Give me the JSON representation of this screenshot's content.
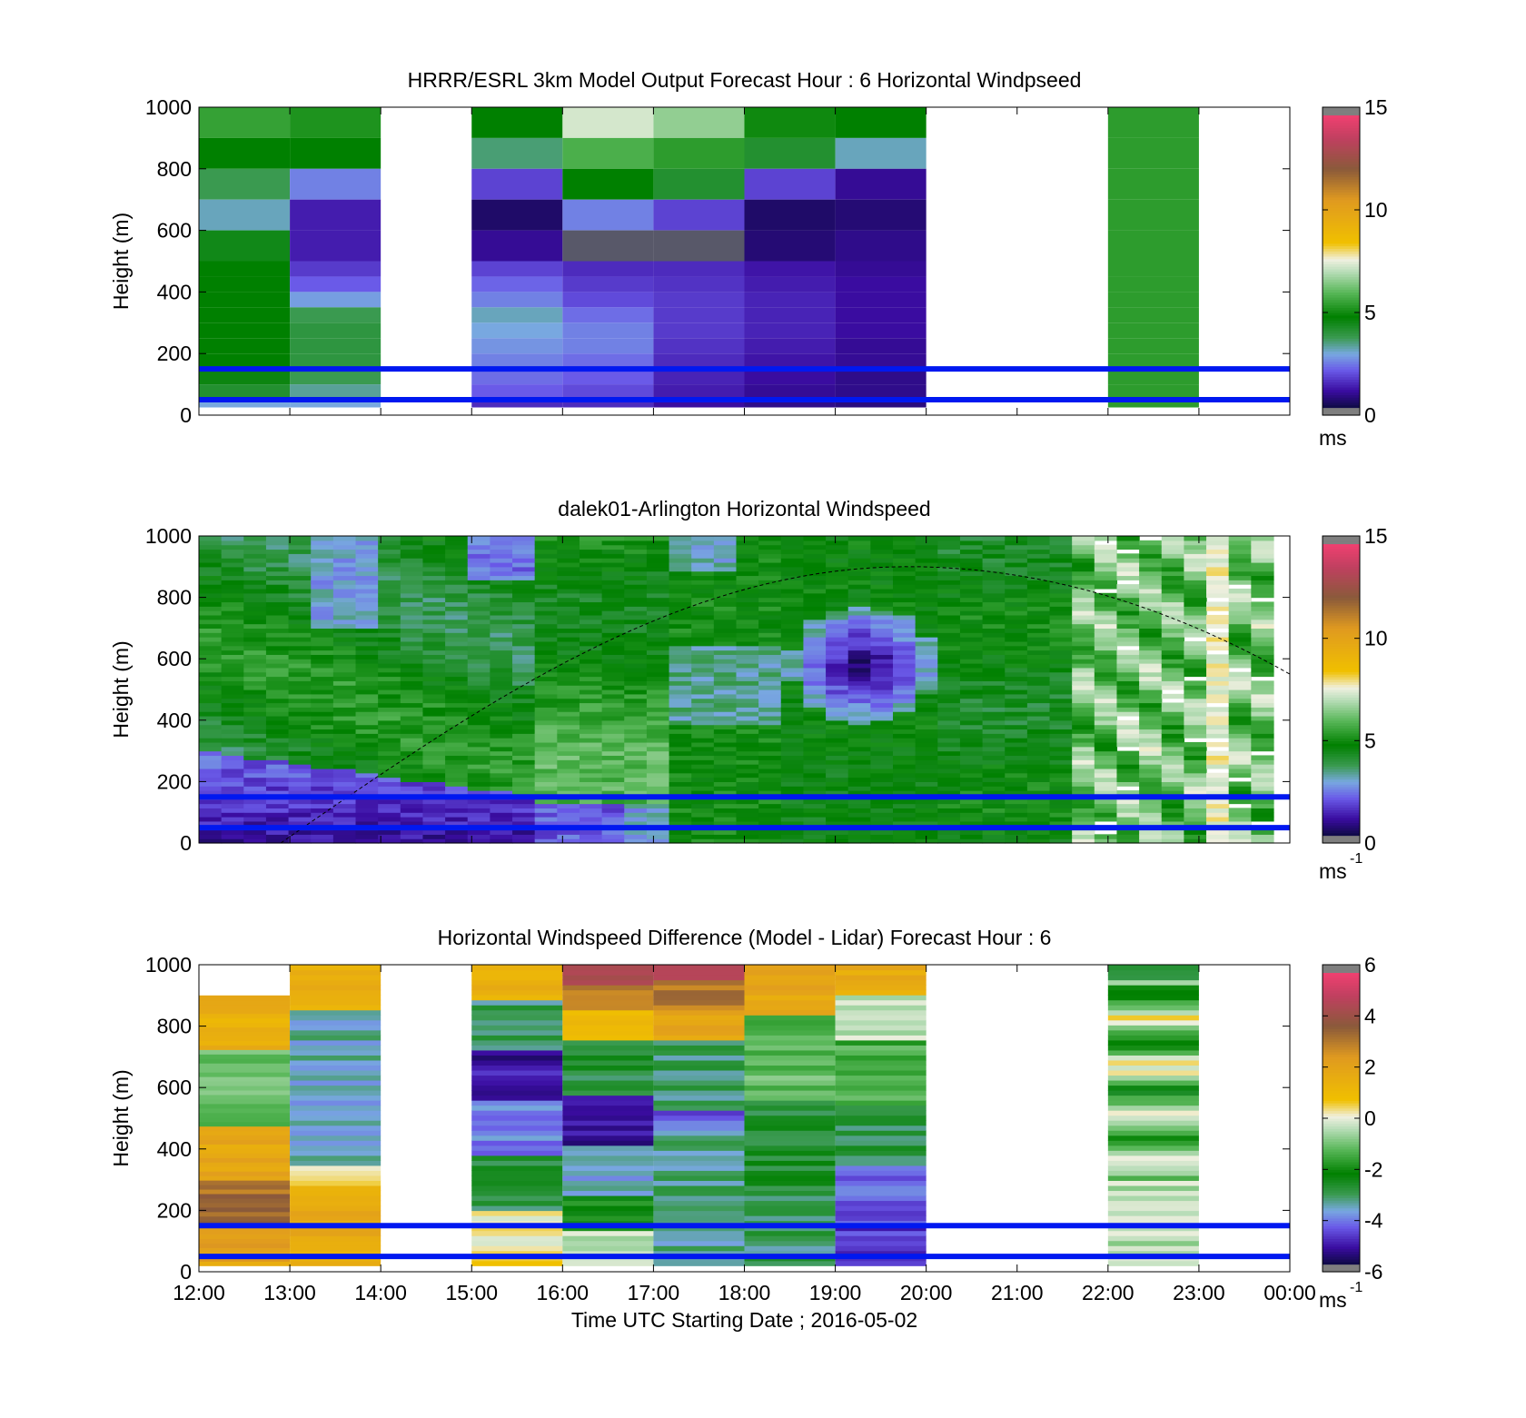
{
  "chart_data": [
    {
      "type": "heatmap",
      "id": "model",
      "title": "HRRR/ESRL 3km Model Output   Forecast Hour : 6 Horizontal Windpseed",
      "ylabel": "Height (m)",
      "xlabel": "",
      "unit_label": "ms",
      "unit_superscript": "",
      "x_range_hours": [
        12,
        24
      ],
      "ylim": [
        0,
        1000
      ],
      "yticks": [
        0,
        200,
        400,
        600,
        800,
        1000
      ],
      "colorbar": {
        "min": 0,
        "max": 15,
        "ticks": [
          0,
          5,
          10,
          15
        ],
        "palette": "speed"
      },
      "reference_lines_m": [
        50,
        150
      ],
      "data_bottom_m": 25,
      "column_values_ms": {
        "note_hidden": true,
        "heights_m": [
          1000,
          900,
          800,
          700,
          600,
          500,
          450,
          400,
          350,
          300,
          250,
          200,
          150,
          100,
          50
        ],
        "columns": [
          {
            "start": 12,
            "end": 13,
            "values": [
              5.5,
              4.8,
              3.8,
              3.2,
              4.5,
              4.8,
              4.8,
              4.8,
              4.8,
              4.8,
              4.8,
              4.8,
              4.6,
              4.2,
              3.0
            ]
          },
          {
            "start": 13,
            "end": 14,
            "values": [
              5.2,
              4.8,
              2.6,
              1.4,
              1.4,
              1.8,
              2.2,
              2.9,
              3.8,
              4.0,
              4.0,
              4.0,
              3.8,
              3.4,
              3.0
            ]
          },
          {
            "start": 15,
            "end": 16,
            "values": [
              4.8,
              3.6,
              1.9,
              0.7,
              1.1,
              1.9,
              2.3,
              2.6,
              3.2,
              3.0,
              2.8,
              2.6,
              2.4,
              2.2,
              1.6
            ]
          },
          {
            "start": 16,
            "end": 17,
            "values": [
              7.3,
              5.8,
              4.8,
              2.6,
              0.1,
              1.6,
              1.8,
              2.0,
              2.4,
              2.6,
              2.6,
              2.4,
              2.2,
              2.0,
              1.6
            ]
          },
          {
            "start": 17,
            "end": 18,
            "values": [
              6.6,
              5.4,
              4.2,
              1.9,
              0.1,
              1.6,
              1.7,
              1.8,
              1.8,
              1.8,
              1.7,
              1.6,
              1.5,
              1.4,
              1.2
            ]
          },
          {
            "start": 18,
            "end": 19,
            "values": [
              5.0,
              4.2,
              1.9,
              0.7,
              0.8,
              1.3,
              1.4,
              1.5,
              1.5,
              1.5,
              1.4,
              1.3,
              1.2,
              1.1,
              1.0
            ]
          },
          {
            "start": 19,
            "end": 20,
            "values": [
              4.8,
              3.2,
              1.1,
              0.8,
              1.0,
              1.1,
              1.2,
              1.2,
              1.2,
              1.2,
              1.1,
              1.1,
              1.0,
              1.0,
              0.9
            ]
          },
          {
            "start": 22,
            "end": 23,
            "values": [
              5.4,
              5.4,
              5.4,
              5.4,
              5.4,
              5.4,
              5.4,
              5.4,
              5.4,
              5.4,
              5.4,
              5.4,
              5.4,
              5.4,
              5.4
            ]
          }
        ]
      }
    },
    {
      "type": "heatmap",
      "id": "lidar",
      "title": "dalek01-Arlington  Horizontal Windspeed",
      "ylabel": "Height (m)",
      "xlabel": "",
      "unit_label": "ms",
      "unit_superscript": "-1",
      "x_range_hours": [
        12,
        24
      ],
      "ylim": [
        0,
        1000
      ],
      "yticks": [
        0,
        200,
        400,
        600,
        800,
        1000
      ],
      "colorbar": {
        "min": 0,
        "max": 15,
        "ticks": [
          0,
          5,
          10,
          15
        ],
        "palette": "speed"
      },
      "reference_lines_m": [
        50,
        150
      ],
      "boundary_curve": {
        "peak_hour": 19.8,
        "peak_height_m": 900,
        "start_hour": 12.9,
        "end_hour": 24.0,
        "end_height_m": 550
      }
    },
    {
      "type": "heatmap",
      "id": "difference",
      "title": "Horizontal Windspeed Difference (Model - Lidar) Forecast Hour : 6",
      "ylabel": "Height (m)",
      "xlabel": "Time UTC  Starting Date ; 2016-05-02",
      "unit_label": "ms",
      "unit_superscript": "-1",
      "x_range_hours": [
        12,
        24
      ],
      "xticks": [
        "12:00",
        "13:00",
        "14:00",
        "15:00",
        "16:00",
        "17:00",
        "18:00",
        "19:00",
        "20:00",
        "21:00",
        "22:00",
        "23:00",
        "00:00"
      ],
      "ylim": [
        0,
        1000
      ],
      "yticks": [
        0,
        200,
        400,
        600,
        800,
        1000
      ],
      "colorbar": {
        "min": -6,
        "max": 6,
        "ticks": [
          -6,
          -4,
          -2,
          0,
          2,
          4,
          6
        ],
        "palette": "diff"
      },
      "reference_lines_m": [
        50,
        150
      ],
      "columns": [
        {
          "start": 12,
          "end": 13,
          "top_m": 900
        },
        {
          "start": 13,
          "end": 14,
          "top_m": 1000
        },
        {
          "start": 15,
          "end": 16,
          "top_m": 1000
        },
        {
          "start": 16,
          "end": 17,
          "top_m": 1000
        },
        {
          "start": 17,
          "end": 18,
          "top_m": 1000
        },
        {
          "start": 18,
          "end": 19,
          "top_m": 1000
        },
        {
          "start": 19,
          "end": 20,
          "top_m": 1000
        },
        {
          "start": 22,
          "end": 23,
          "top_m": 1000
        }
      ]
    }
  ],
  "colors": {
    "reference_line": "#0018f0",
    "speed_palette": [
      "#7f7f7f",
      "#0a0a3c",
      "#3a0ca0",
      "#6a5ae8",
      "#78a8e0",
      "#3a9a50",
      "#008000",
      "#5ab85a",
      "#b8ddb8",
      "#f0f0e0",
      "#f0c000",
      "#e09a20",
      "#8a5a3a",
      "#c04060",
      "#f04070",
      "#7f7f7f"
    ],
    "diff_palette": [
      "#7f7f7f",
      "#0a0a3c",
      "#3a0ca0",
      "#6a5ae8",
      "#78a8e0",
      "#3a9a50",
      "#008000",
      "#5ab85a",
      "#b8ddb8",
      "#f0f0e0",
      "#f0c000",
      "#e09a20",
      "#8a5a3a",
      "#c04060",
      "#f04070",
      "#7f7f7f"
    ]
  }
}
